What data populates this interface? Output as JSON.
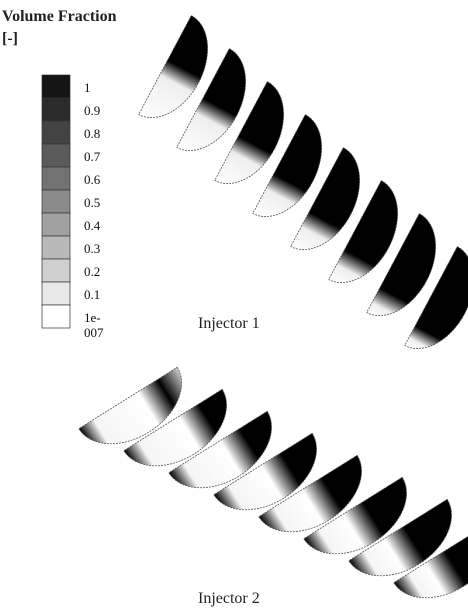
{
  "legend": {
    "title": "Volume Fraction [-]",
    "labels": [
      "1",
      "0.9",
      "0.8",
      "0.7",
      "0.6",
      "0.5",
      "0.4",
      "0.3",
      "0.2",
      "0.1",
      "1e-007"
    ]
  },
  "captions": [
    "Injector 1",
    "Injector 2"
  ]
}
